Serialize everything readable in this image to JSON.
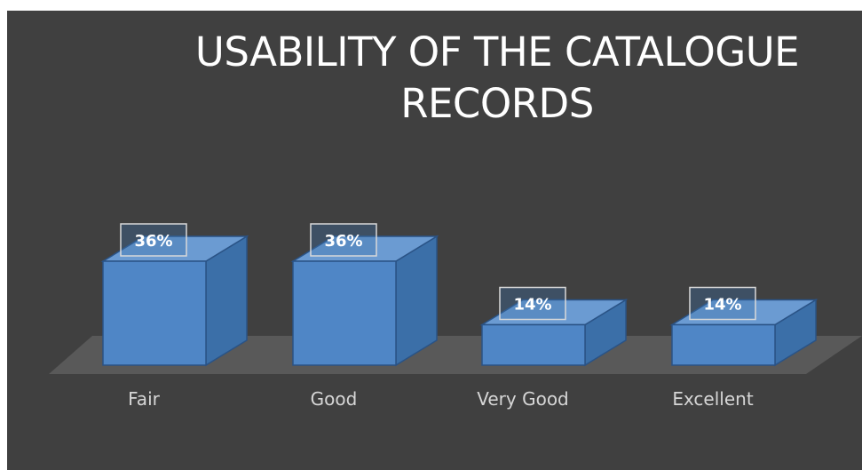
{
  "chart_data": {
    "type": "bar",
    "style": "3d-column",
    "title": "USABILITY OF THE CATALOGUE RECORDS",
    "categories": [
      "Fair",
      "Good",
      "Very Good",
      "Excellent"
    ],
    "series": [
      {
        "values": [
          36,
          36,
          14,
          14
        ]
      }
    ],
    "data_labels": [
      "36%",
      "36%",
      "14%",
      "14%"
    ],
    "ylim": [
      0,
      40
    ],
    "grid": false,
    "legend": "none",
    "colors": {
      "background": "#404040",
      "floor": "#595959",
      "bar_front": "#4f86c6",
      "bar_side": "#3b6fa8",
      "bar_top": "#6b9bd2",
      "bar_edge": "#2a5386",
      "title": "#ffffff",
      "category_text": "#d6d6d6",
      "data_label_text": "#ffffff",
      "data_label_border": "#d9d9d9"
    }
  }
}
